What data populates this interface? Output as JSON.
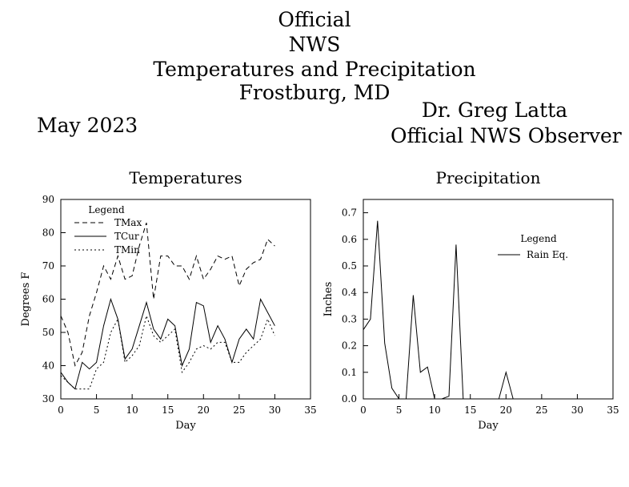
{
  "header": {
    "title_lines": [
      "Official",
      "NWS",
      "Temperatures and Precipitation",
      "Frostburg, MD"
    ],
    "month": "May 2023",
    "observer_name": "Dr. Greg Latta",
    "observer_title": "Official NWS Observer"
  },
  "chart_data": [
    {
      "type": "line",
      "title": "Temperatures",
      "xlabel": "Day",
      "ylabel": "Degrees F",
      "xlim": [
        0,
        35
      ],
      "ylim": [
        30,
        90
      ],
      "xticks": [
        0,
        5,
        10,
        15,
        20,
        25,
        30,
        35
      ],
      "yticks": [
        30,
        40,
        50,
        60,
        70,
        80,
        90
      ],
      "legend": {
        "title": "Legend",
        "position": "top-left"
      },
      "series": [
        {
          "name": "TMax",
          "style": "dashed",
          "x": [
            0,
            1,
            2,
            3,
            4,
            5,
            6,
            7,
            8,
            9,
            10,
            11,
            12,
            13,
            14,
            15,
            16,
            17,
            18,
            19,
            20,
            21,
            22,
            23,
            24,
            25,
            26,
            27,
            28,
            29,
            30
          ],
          "y": [
            55,
            50,
            40,
            44,
            55,
            62,
            70,
            66,
            73,
            66,
            67,
            76,
            83,
            60,
            73,
            73,
            70,
            70,
            66,
            73,
            66,
            69,
            73,
            72,
            73,
            64,
            69,
            71,
            72,
            78,
            76
          ]
        },
        {
          "name": "TCur",
          "style": "solid",
          "x": [
            0,
            1,
            2,
            3,
            4,
            5,
            6,
            7,
            8,
            9,
            10,
            11,
            12,
            13,
            14,
            15,
            16,
            17,
            18,
            19,
            20,
            21,
            22,
            23,
            24,
            25,
            26,
            27,
            28,
            29,
            30
          ],
          "y": [
            38,
            35,
            33,
            41,
            39,
            41,
            52,
            60,
            54,
            42,
            45,
            52,
            59,
            51,
            48,
            54,
            52,
            40,
            45,
            59,
            58,
            47,
            52,
            48,
            41,
            48,
            51,
            48,
            60,
            56,
            52
          ]
        },
        {
          "name": "TMin",
          "style": "dotted",
          "x": [
            0,
            1,
            2,
            3,
            4,
            5,
            6,
            7,
            8,
            9,
            10,
            11,
            12,
            13,
            14,
            15,
            16,
            17,
            18,
            19,
            20,
            21,
            22,
            23,
            24,
            25,
            26,
            27,
            28,
            29,
            30
          ],
          "y": [
            37,
            35,
            33,
            33,
            33,
            39,
            41,
            50,
            54,
            41,
            43,
            46,
            55,
            49,
            47,
            49,
            51,
            38,
            41,
            45,
            46,
            45,
            47,
            47,
            41,
            41,
            44,
            46,
            48,
            54,
            49
          ]
        }
      ]
    },
    {
      "type": "line",
      "title": "Precipitation",
      "xlabel": "Day",
      "ylabel": "Inches",
      "xlim": [
        0,
        35
      ],
      "ylim": [
        0,
        0.75
      ],
      "xticks": [
        0,
        5,
        10,
        15,
        20,
        25,
        30,
        35
      ],
      "yticks": [
        0.0,
        0.1,
        0.2,
        0.3,
        0.4,
        0.5,
        0.6,
        0.7
      ],
      "ytick_labels": [
        "0.0",
        "0.1",
        "0.2",
        "0.3",
        "0.4",
        "0.5",
        "0.6",
        "0.7"
      ],
      "legend": {
        "title": "Legend",
        "position": "top-right"
      },
      "series": [
        {
          "name": "Rain Eq.",
          "style": "solid",
          "x": [
            0,
            1,
            2,
            3,
            4,
            5,
            6,
            7,
            8,
            9,
            10,
            11,
            12,
            13,
            14,
            15,
            16,
            17,
            18,
            19,
            20,
            21
          ],
          "y": [
            0.26,
            0.3,
            0.67,
            0.21,
            0.04,
            0.0,
            0.0,
            0.39,
            0.1,
            0.12,
            0.0,
            0.0,
            0.01,
            0.58,
            0.0,
            0.0,
            0.0,
            0.0,
            0.0,
            0.0,
            0.1,
            0.0
          ]
        }
      ]
    }
  ]
}
